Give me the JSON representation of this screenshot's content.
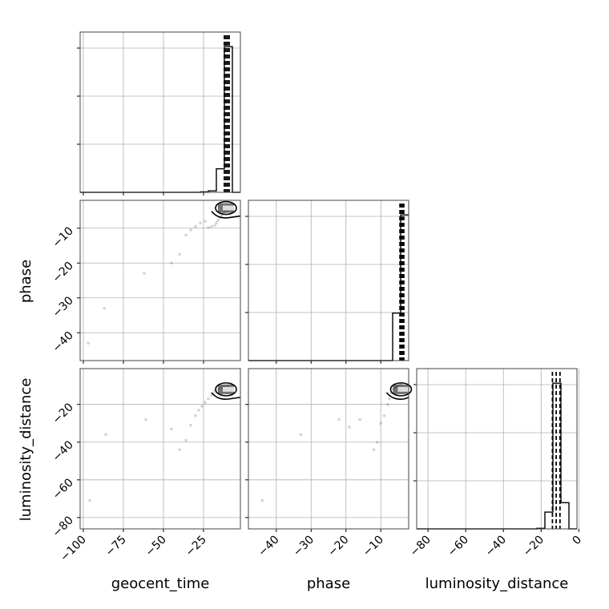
{
  "chart_data": {
    "type": "scatter",
    "parameters": [
      "geocent_time",
      "phase",
      "luminosity_distance"
    ],
    "axis_labels": {
      "x": [
        "geocent_time",
        "phase",
        "luminosity_distance"
      ],
      "y_row1": "phase",
      "y_row2": "luminosity_distance"
    },
    "ranges": {
      "geocent_time": [
        -102,
        -2
      ],
      "phase": [
        -48,
        -2
      ],
      "luminosity_distance": [
        -86,
        -1
      ]
    },
    "ticks": {
      "geocent_time": [
        -100,
        -75,
        -50,
        -25
      ],
      "phase": [
        -40,
        -30,
        -20,
        -10
      ],
      "luminosity_distance": [
        -80,
        -60,
        -40,
        -20,
        0
      ]
    },
    "tick_labels": {
      "geocent_time": [
        "−100",
        "−75",
        "−50",
        "−25"
      ],
      "phase": [
        "−40",
        "−30",
        "−20",
        "−10"
      ],
      "luminosity_distance": [
        "−80",
        "−60",
        "−40",
        "−20",
        "0"
      ]
    },
    "quantiles": {
      "geocent_time": [
        -12,
        -11,
        -10,
        -9
      ],
      "phase": [
        -4.5,
        -4.2,
        -3.8,
        -3.4
      ],
      "luminosity_distance": [
        -14,
        -12,
        -10
      ]
    },
    "histograms": {
      "geocent_time": {
        "edges": [
          -102,
          -97,
          -92,
          -87,
          -82,
          -77,
          -72,
          -67,
          -62,
          -57,
          -52,
          -47,
          -42,
          -37,
          -32,
          -27,
          -22,
          -17,
          -12,
          -7,
          -2
        ],
        "counts": [
          0,
          0,
          0,
          0,
          0,
          0,
          0,
          0,
          0,
          0,
          0,
          0,
          0,
          0,
          0,
          0.3,
          1.0,
          16.1,
          100,
          0
        ]
      },
      "phase": {
        "edges": [
          -48,
          -45.7,
          -43.4,
          -41.1,
          -38.8,
          -36.5,
          -34.2,
          -31.9,
          -29.6,
          -27.3,
          -25,
          -22.7,
          -20.4,
          -18.1,
          -15.8,
          -13.5,
          -11.2,
          -8.9,
          -6.6,
          -4.3,
          -2
        ],
        "counts": [
          0,
          0,
          0,
          0,
          0,
          0,
          0,
          0,
          0,
          0,
          0,
          0,
          0,
          0,
          0,
          0,
          0,
          0,
          32.6,
          100
        ]
      },
      "luminosity_distance": {
        "edges": [
          -86,
          -81.75,
          -77.5,
          -73.25,
          -69,
          -64.75,
          -60.5,
          -56.25,
          -52,
          -47.75,
          -43.5,
          -39.25,
          -35,
          -30.75,
          -26.5,
          -22.25,
          -18,
          -13.75,
          -9.5,
          -5.25,
          -1
        ],
        "counts": [
          0,
          0,
          0,
          0,
          0,
          0,
          0,
          0,
          0,
          0,
          0,
          0,
          0,
          0,
          0,
          0.4,
          11.5,
          100,
          18,
          0
        ]
      }
    },
    "samples": {
      "phase_vs_geocent_time": [
        [
          -97,
          -43
        ],
        [
          -87,
          -33
        ],
        [
          -62,
          -23
        ],
        [
          -45,
          -20
        ],
        [
          -40,
          -17.5
        ],
        [
          -36,
          -12
        ],
        [
          -33,
          -10.5
        ],
        [
          -30,
          -9.5
        ],
        [
          -27,
          -8.5
        ],
        [
          -24,
          -8
        ],
        [
          -22,
          -9.8
        ],
        [
          -20,
          -9.5
        ],
        [
          -18,
          -9.2
        ],
        [
          -17,
          -8.5
        ],
        [
          -16,
          -7.8
        ],
        [
          -15,
          -7
        ],
        [
          -14,
          -6.5
        ],
        [
          -13,
          -6
        ],
        [
          -12,
          -5.5
        ],
        [
          -11,
          -5
        ],
        [
          -10,
          -4.8
        ],
        [
          -9,
          -4.5
        ],
        [
          -8,
          -4.2
        ],
        [
          -7,
          -4
        ]
      ],
      "luminosity_distance_vs_geocent_time": [
        [
          -96,
          -71
        ],
        [
          -86,
          -36
        ],
        [
          -61,
          -28
        ],
        [
          -45,
          -33
        ],
        [
          -40,
          -44
        ],
        [
          -36,
          -39
        ],
        [
          -33,
          -31
        ],
        [
          -30,
          -26
        ],
        [
          -28,
          -23
        ],
        [
          -26,
          -21
        ],
        [
          -24,
          -19
        ],
        [
          -22,
          -17
        ],
        [
          -20,
          -15
        ],
        [
          -18,
          -13
        ],
        [
          -16,
          -12
        ],
        [
          -14,
          -11
        ],
        [
          -12,
          -10.5
        ],
        [
          -10,
          -10
        ],
        [
          -8,
          -9
        ]
      ],
      "luminosity_distance_vs_phase": [
        [
          -44,
          -71
        ],
        [
          -33,
          -36
        ],
        [
          -22,
          -28
        ],
        [
          -19,
          -32
        ],
        [
          -16,
          -28
        ],
        [
          -12,
          -44
        ],
        [
          -11,
          -40
        ],
        [
          -10,
          -30
        ],
        [
          -9,
          -26
        ],
        [
          -8,
          -20
        ],
        [
          -7.5,
          -17
        ],
        [
          -7,
          -14
        ],
        [
          -6.5,
          -12
        ],
        [
          -6,
          -11
        ],
        [
          -5.5,
          -10.5
        ],
        [
          -5,
          -10
        ],
        [
          -4.5,
          -9.5
        ],
        [
          -4,
          -9
        ]
      ]
    }
  }
}
